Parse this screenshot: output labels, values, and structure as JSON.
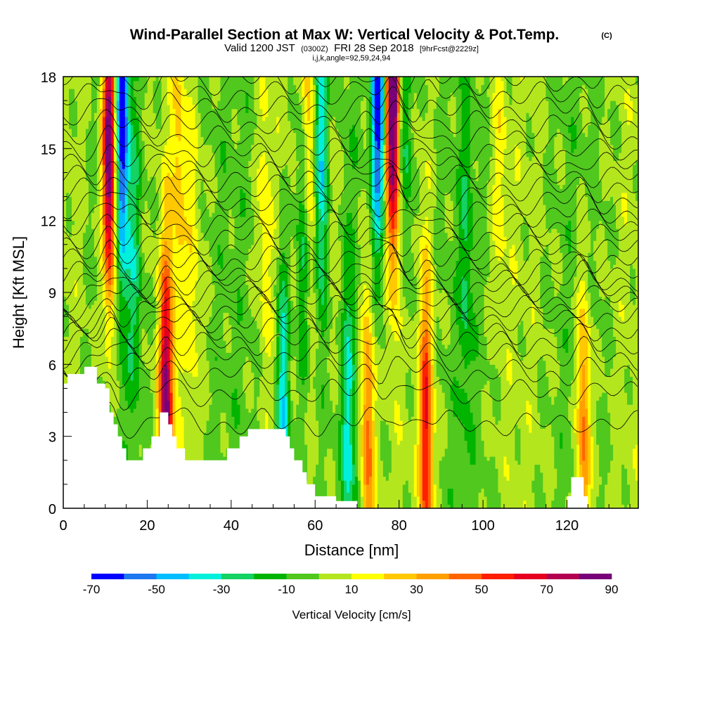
{
  "chart_data": {
    "type": "heatmap",
    "title": "Wind-Parallel Section at Max W: Vertical Velocity & Pot.Temp.",
    "title_mark": "(C)",
    "subtitle": {
      "prefix": "Valid 1200 JST",
      "zulu": "(0300Z)",
      "date": "FRI 28 Sep 2018",
      "fcst": "[9hrFcst@2229z]"
    },
    "params": "i,j,k,angle=92,59,24,94",
    "xlabel": "Distance [nm]",
    "ylabel": "Height [Kft MSL]",
    "xlim": [
      0,
      137
    ],
    "ylim": [
      0,
      18
    ],
    "x_ticks": [
      0,
      20,
      40,
      60,
      80,
      100,
      120
    ],
    "y_ticks": [
      0,
      3,
      6,
      9,
      12,
      15,
      18
    ],
    "colorbar": {
      "label": "Vertical Velocity [cm/s]",
      "levels": [
        -70,
        -60,
        -50,
        -40,
        -30,
        -20,
        -10,
        0,
        10,
        20,
        30,
        40,
        50,
        60,
        70,
        80,
        90
      ],
      "tick_labels": [
        -70,
        -50,
        -30,
        -10,
        10,
        30,
        50,
        70,
        90
      ],
      "colors": [
        "#0000ff",
        "#1e78f0",
        "#00beff",
        "#00f0dc",
        "#14d264",
        "#00b400",
        "#50c81e",
        "#b4e61e",
        "#ffff00",
        "#ffc800",
        "#ffa000",
        "#ff6400",
        "#ff1e00",
        "#e6001e",
        "#b40050",
        "#780078"
      ]
    },
    "background_value": 0,
    "updrafts": [
      {
        "x": 11,
        "w": 100,
        "peak_height": 15
      },
      {
        "x": 24.5,
        "w": 85,
        "peak_height": 4
      },
      {
        "x": 27.5,
        "w": 22,
        "peak_height": 14
      },
      {
        "x": 31,
        "w": 14,
        "peak_height": 10
      },
      {
        "x": 48,
        "w": 18,
        "peak_height": 12
      },
      {
        "x": 58.5,
        "w": 28,
        "peak_height": 16
      },
      {
        "x": 64,
        "w": 14,
        "peak_height": 13
      },
      {
        "x": 72.5,
        "w": 48,
        "peak_height": 3
      },
      {
        "x": 78.5,
        "w": 100,
        "peak_height": 17
      },
      {
        "x": 86.5,
        "w": 62,
        "peak_height": 3
      },
      {
        "x": 104,
        "w": 14,
        "peak_height": 14
      },
      {
        "x": 124,
        "w": 48,
        "peak_height": 3
      }
    ],
    "downdrafts": [
      {
        "x": 14,
        "w": -70,
        "peak_height": 16
      },
      {
        "x": 17,
        "w": -22,
        "peak_height": 10
      },
      {
        "x": 52.5,
        "w": -42,
        "peak_height": 4
      },
      {
        "x": 57,
        "w": -28,
        "peak_height": 11
      },
      {
        "x": 61.5,
        "w": -45,
        "peak_height": 15
      },
      {
        "x": 68,
        "w": -30,
        "peak_height": 3
      },
      {
        "x": 75,
        "w": -70,
        "peak_height": 17
      },
      {
        "x": 81.5,
        "w": -30,
        "peak_height": 16
      },
      {
        "x": 96,
        "w": -18,
        "peak_height": 10
      }
    ],
    "terrain_height_kft": [
      {
        "x": 0,
        "h": 5.2
      },
      {
        "x": 1,
        "h": 5.6
      },
      {
        "x": 5,
        "h": 5.9
      },
      {
        "x": 8,
        "h": 5.2
      },
      {
        "x": 9,
        "h": 5.2
      },
      {
        "x": 10,
        "h": 5.0
      },
      {
        "x": 11,
        "h": 4.0
      },
      {
        "x": 12,
        "h": 3.5
      },
      {
        "x": 13,
        "h": 3.0
      },
      {
        "x": 14,
        "h": 2.5
      },
      {
        "x": 15,
        "h": 2.0
      },
      {
        "x": 18,
        "h": 2.0
      },
      {
        "x": 19,
        "h": 2.5
      },
      {
        "x": 21,
        "h": 3.0
      },
      {
        "x": 23,
        "h": 4.0
      },
      {
        "x": 24,
        "h": 4.0
      },
      {
        "x": 25,
        "h": 3.5
      },
      {
        "x": 26,
        "h": 3.0
      },
      {
        "x": 27,
        "h": 2.5
      },
      {
        "x": 29,
        "h": 2.0
      },
      {
        "x": 38,
        "h": 2.0
      },
      {
        "x": 39,
        "h": 2.5
      },
      {
        "x": 42,
        "h": 3.0
      },
      {
        "x": 44,
        "h": 3.3
      },
      {
        "x": 52,
        "h": 3.3
      },
      {
        "x": 53,
        "h": 3.0
      },
      {
        "x": 54,
        "h": 2.5
      },
      {
        "x": 55,
        "h": 2.0
      },
      {
        "x": 57,
        "h": 1.5
      },
      {
        "x": 58,
        "h": 1.0
      },
      {
        "x": 59,
        "h": 1.0
      },
      {
        "x": 60,
        "h": 0.5
      },
      {
        "x": 63,
        "h": 0.5
      },
      {
        "x": 65,
        "h": 0.3
      },
      {
        "x": 69,
        "h": 0.3
      },
      {
        "x": 70,
        "h": 0.0
      },
      {
        "x": 119,
        "h": 0.0
      },
      {
        "x": 120,
        "h": 0.5
      },
      {
        "x": 121,
        "h": 1.3
      },
      {
        "x": 123,
        "h": 1.3
      },
      {
        "x": 124,
        "h": 0.5
      },
      {
        "x": 125,
        "h": 0.0
      },
      {
        "x": 135,
        "h": 0.0
      }
    ],
    "isentropes": [
      {
        "base": 3.5,
        "left_offset": 0.0
      },
      {
        "base": 4.8,
        "left_offset": 0.3
      },
      {
        "base": 5.6,
        "left_offset": 0.5
      },
      {
        "base": 6.3,
        "left_offset": 0.7
      },
      {
        "base": 6.9,
        "left_offset": 0.9
      },
      {
        "base": 7.4,
        "left_offset": 1.0
      },
      {
        "base": 7.9,
        "left_offset": 1.1
      },
      {
        "base": 8.3,
        "left_offset": 1.2
      },
      {
        "base": 8.7,
        "left_offset": 1.2
      },
      {
        "base": 9.1,
        "left_offset": 1.2
      },
      {
        "base": 9.5,
        "left_offset": 1.2
      },
      {
        "base": 9.9,
        "left_offset": 1.2
      },
      {
        "base": 10.3,
        "left_offset": 1.2
      },
      {
        "base": 10.8,
        "left_offset": 1.2
      },
      {
        "base": 11.3,
        "left_offset": 1.1
      },
      {
        "base": 11.8,
        "left_offset": 1.0
      },
      {
        "base": 12.3,
        "left_offset": 1.0
      },
      {
        "base": 12.8,
        "left_offset": 0.9
      },
      {
        "base": 13.3,
        "left_offset": 0.8
      },
      {
        "base": 13.8,
        "left_offset": 0.7
      },
      {
        "base": 14.3,
        "left_offset": 0.6
      },
      {
        "base": 14.8,
        "left_offset": 0.5
      },
      {
        "base": 15.4,
        "left_offset": 0.4
      },
      {
        "base": 16.0,
        "left_offset": 0.3
      },
      {
        "base": 16.6,
        "left_offset": 0.2
      },
      {
        "base": 17.2,
        "left_offset": 0.1
      },
      {
        "base": 17.8,
        "left_offset": 0.0
      }
    ]
  }
}
